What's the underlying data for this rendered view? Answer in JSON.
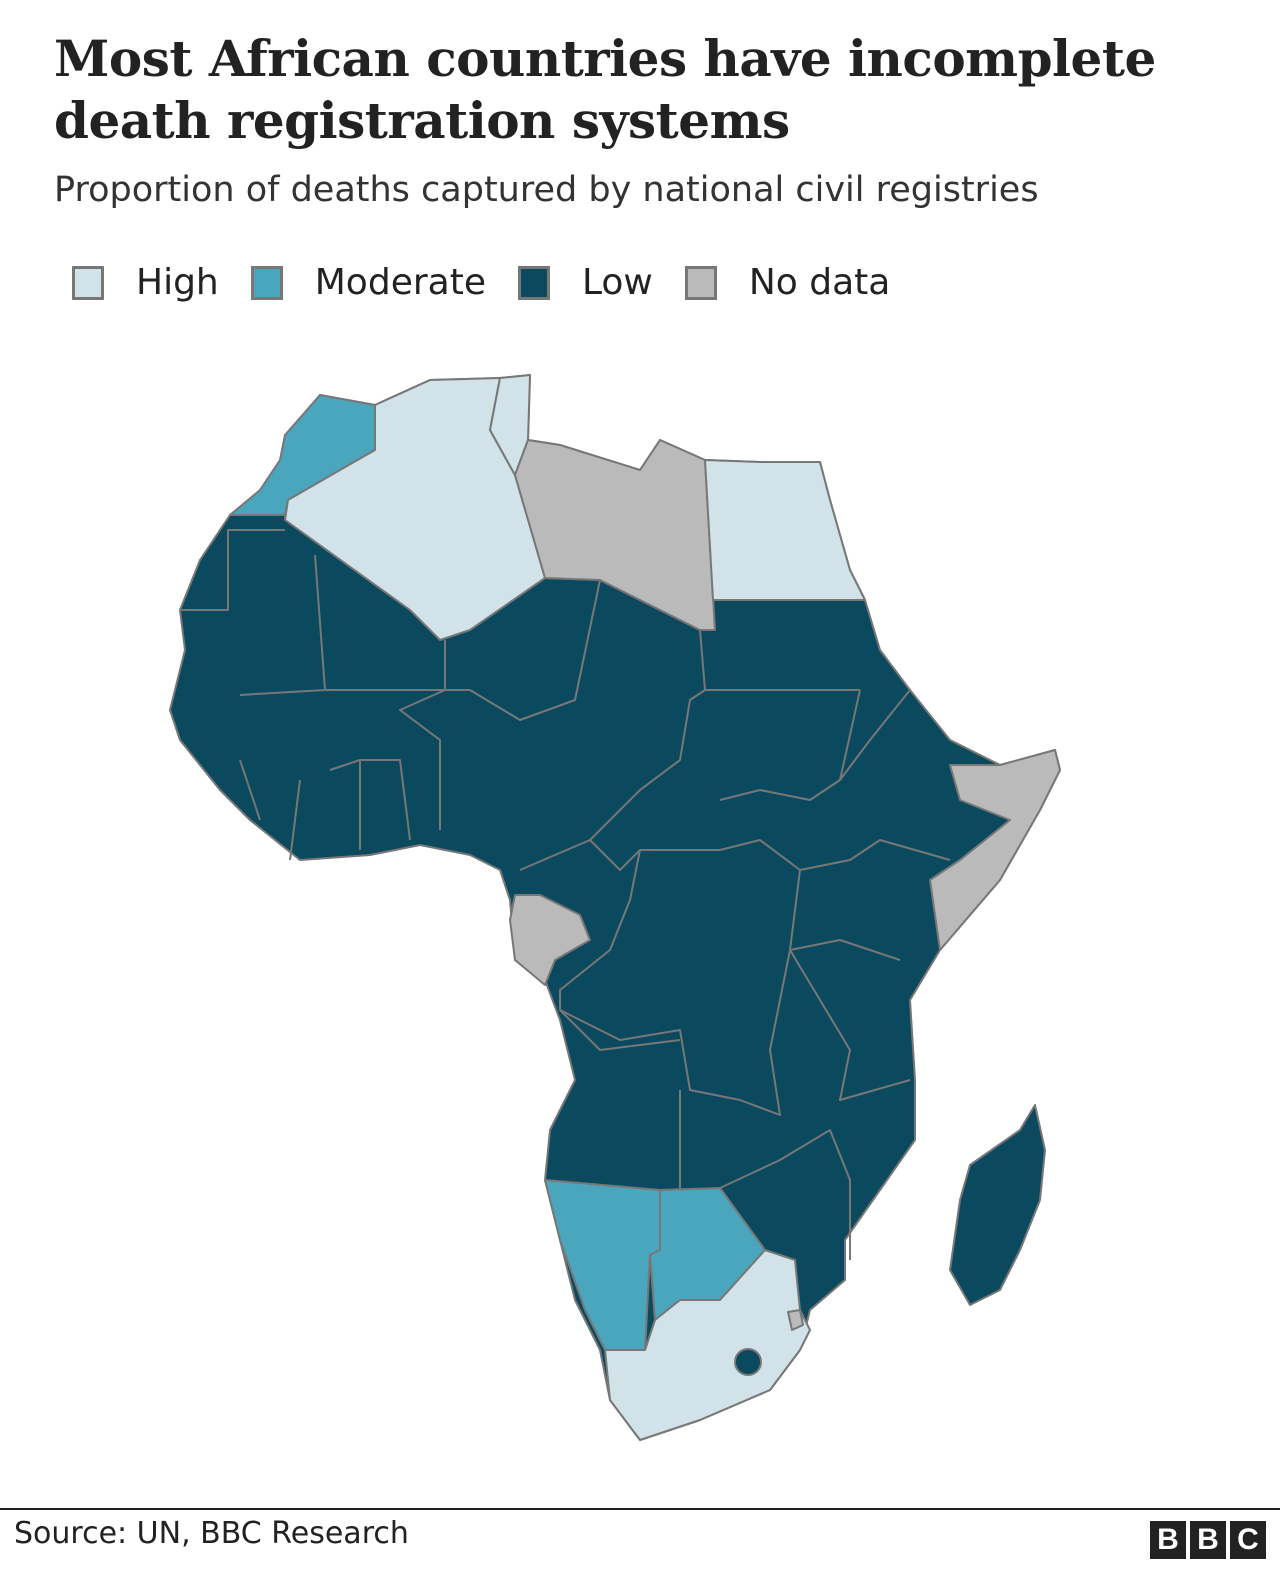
{
  "header": {
    "title": "Most African countries have incomplete death registration systems",
    "subtitle": "Proportion of deaths captured by national civil registries"
  },
  "legend": [
    {
      "label": "High",
      "color": "#d1e3e8"
    },
    {
      "label": "Moderate",
      "color": "#4aa6bc"
    },
    {
      "label": "Low",
      "color": "#0b4a5e"
    },
    {
      "label": "No data",
      "color": "#bababa"
    }
  ],
  "map_data": {
    "type": "choropleth",
    "region": "Africa",
    "border_color": "#777777",
    "categories": {
      "High": [
        "Algeria",
        "Tunisia",
        "Egypt",
        "South Africa"
      ],
      "Moderate": [
        "Morocco",
        "Namibia",
        "Botswana"
      ],
      "No data": [
        "Libya",
        "Somalia",
        "Gabon",
        "Eswatini"
      ],
      "Low": [
        "all other countries"
      ]
    }
  },
  "footer": {
    "source": "Source: UN, BBC Research",
    "logo_letters": [
      "B",
      "B",
      "C"
    ]
  }
}
